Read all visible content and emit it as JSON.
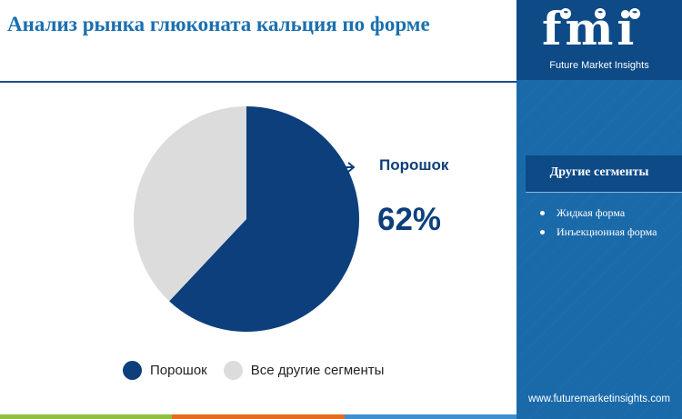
{
  "title": "Анализ рынка глюконата кальция по форме",
  "chart_data": {
    "type": "pie",
    "categories": [
      "Порошок",
      "Все другие сегменты"
    ],
    "values": [
      62,
      38
    ],
    "unit": "%",
    "highlight": {
      "label": "Порошок",
      "value_text": "62%"
    },
    "legend": {
      "position": "bottom",
      "items": [
        "Порошок",
        "Все другие сегменты"
      ]
    },
    "colors": [
      "#0d3f7c",
      "#dcdcdc"
    ]
  },
  "sidebar": {
    "logo_text": "fmi",
    "tagline": "Future Market Insights",
    "segments_title": "Другие сегменты",
    "segments": [
      "Жидкая форма",
      "Инъекционная форма"
    ],
    "website": "www.futuremarketinsights.com"
  },
  "colors": {
    "title": "#1a6fb0",
    "primary": "#0d3f7c",
    "secondary": "#dcdcdc",
    "sidebar_bg": "#1a6aaa",
    "sidebar_dark": "#0d4a86",
    "bottom_bar": [
      "#8ebf3f",
      "#e56b1f",
      "#3d8fd0"
    ]
  }
}
